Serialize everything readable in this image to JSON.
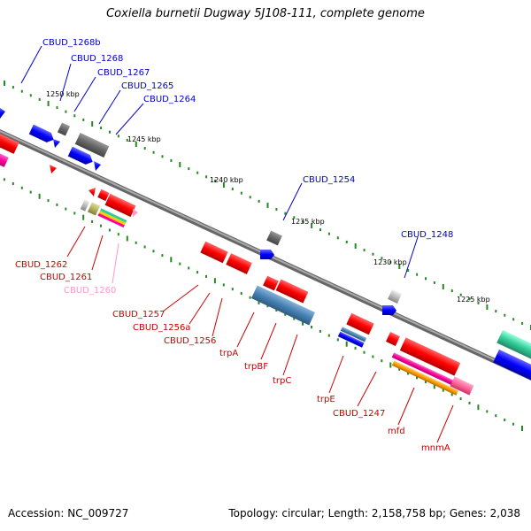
{
  "title": "Coxiella burnetii Dugway 5J108-111, complete genome",
  "footer": {
    "accession": "Accession: NC_009727",
    "summary": "Topology: circular; Length: 2,158,758 bp; Genes: 2,038"
  },
  "ruler_labels": [
    "1250 kbp",
    "1245 kbp",
    "1240 kbp",
    "1235 kbp",
    "1230 kbp",
    "1225 kbp"
  ],
  "gene_labels_top": [
    "CBUD_1268b",
    "CBUD_1268",
    "CBUD_1267",
    "CBUD_1265",
    "CBUD_1264",
    "CBUD_1254",
    "CBUD_1248"
  ],
  "gene_labels_bottom": [
    "CBUD_1262",
    "CBUD_1261",
    "CBUD_1260",
    "CBUD_1257",
    "CBUD_1256a",
    "CBUD_1256",
    "trpA",
    "trpBF",
    "trpC",
    "trpE",
    "CBUD_1247",
    "mfd",
    "mnmA"
  ],
  "colors": {
    "label_top": "#0000cc",
    "label_bottom": "#cc0000",
    "label_pink": "#ff99cc",
    "backbone": "#808080",
    "tick": "#228b22",
    "gene_red": "#ff0000",
    "gene_blue": "#0000ff",
    "gene_gray": "#666666",
    "gene_steelblue": "#4682b4",
    "gene_green": "#33cc99",
    "gene_magenta": "#ff0099",
    "gene_orange": "#ff9900",
    "gene_pink": "#ff6699",
    "gene_olive": "#b3b35f",
    "gene_lightgray": "#bbbbbb"
  }
}
